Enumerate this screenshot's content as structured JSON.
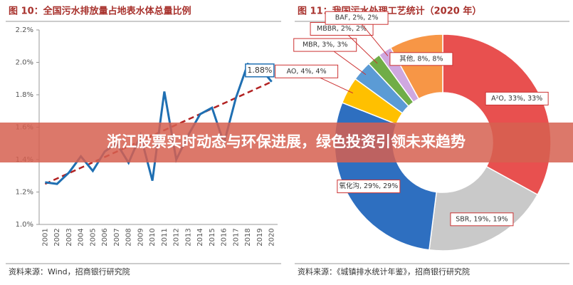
{
  "chart_data": [
    {
      "type": "line",
      "title": "图 10：全国污水排放量占地表水体总量比例",
      "source": "资料来源：Wind，招商银行研究院",
      "categories": [
        "2001",
        "2002",
        "2003",
        "2004",
        "2005",
        "2006",
        "2007",
        "2008",
        "2009",
        "2010",
        "2011",
        "2012",
        "2013",
        "2014",
        "2015",
        "2016",
        "2017",
        "2018",
        "2019",
        "2020"
      ],
      "series": [
        {
          "color": "#1f6fb2",
          "values": [
            1.26,
            1.25,
            1.32,
            1.42,
            1.33,
            1.45,
            1.5,
            1.38,
            1.55,
            1.27,
            1.82,
            1.4,
            1.55,
            1.68,
            1.72,
            1.5,
            1.78,
            1.99,
            1.97,
            1.88
          ]
        }
      ],
      "trend": {
        "color": "#b22222",
        "values": [
          1.25,
          1.88
        ]
      },
      "annotation": "1.88%",
      "ylim": [
        1.0,
        2.2
      ],
      "yticks": [
        {
          "value": 1.0,
          "label": "1.0%"
        },
        {
          "value": 1.2,
          "label": "1.2%"
        },
        {
          "value": 1.4,
          "label": "1.4%"
        },
        {
          "value": 1.6,
          "label": "1.6%"
        },
        {
          "value": 1.8,
          "label": "1.8%"
        },
        {
          "value": 2.0,
          "label": "2.0%"
        },
        {
          "value": 2.2,
          "label": "2.2%"
        }
      ]
    },
    {
      "type": "pie",
      "title": "图 11：我国污水处理工艺统计（2020 年）",
      "source": "资料来源：《城镇排水统计年鉴》，招商银行研究院",
      "categories": [
        "A²O, 33%, 33%",
        "SBR, 19%, 19%",
        "氧化沟, 29%, 29%",
        "AO, 4%, 4%",
        "MBR, 3%, 3%",
        "MBBR, 2%, 2%",
        "BAF, 2%, 2%",
        "其他, 8%, 8%"
      ],
      "values": [
        33,
        19,
        29,
        4,
        3,
        2,
        2,
        8
      ],
      "colors": [
        "#e8504f",
        "#c9c9c9",
        "#2e6fc0",
        "#ffc000",
        "#5b9bd5",
        "#70ad47",
        "#cfa8e0",
        "#f79646"
      ]
    }
  ],
  "banner": "浙江股票实时动态与环保进展，绿色投资引领未来趋势"
}
